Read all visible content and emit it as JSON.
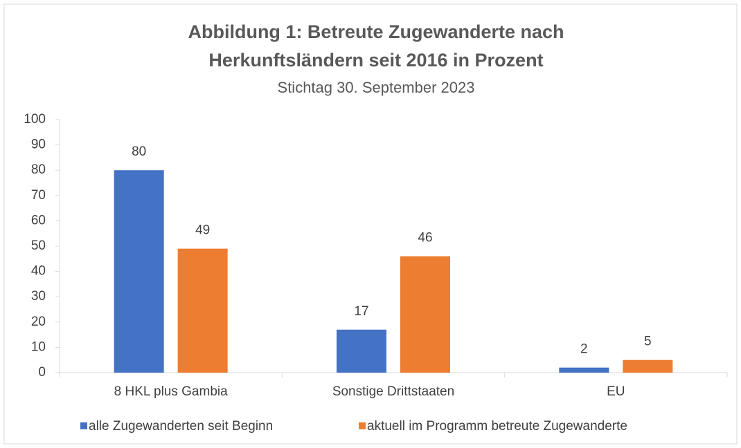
{
  "chart_data": {
    "type": "bar",
    "title": [
      "Abbildung 1: Betreute Zugewanderte nach",
      "Herkunftsländern seit 2016 in Prozent"
    ],
    "subtitle": "Stichtag 30. September 2023",
    "categories": [
      "8 HKL plus Gambia",
      "Sonstige Drittstaaten",
      "EU"
    ],
    "series": [
      {
        "name": "alle Zugewanderten seit Beginn",
        "color": "#4472c4",
        "values": [
          80,
          17,
          2
        ]
      },
      {
        "name": "aktuell im Programm betreute Zugewanderte",
        "color": "#ed7d31",
        "values": [
          49,
          46,
          5
        ]
      }
    ],
    "ylim": [
      0,
      100
    ],
    "yticks": [
      0,
      10,
      20,
      30,
      40,
      50,
      60,
      70,
      80,
      90,
      100
    ],
    "grid": false,
    "legend": "bottom"
  }
}
